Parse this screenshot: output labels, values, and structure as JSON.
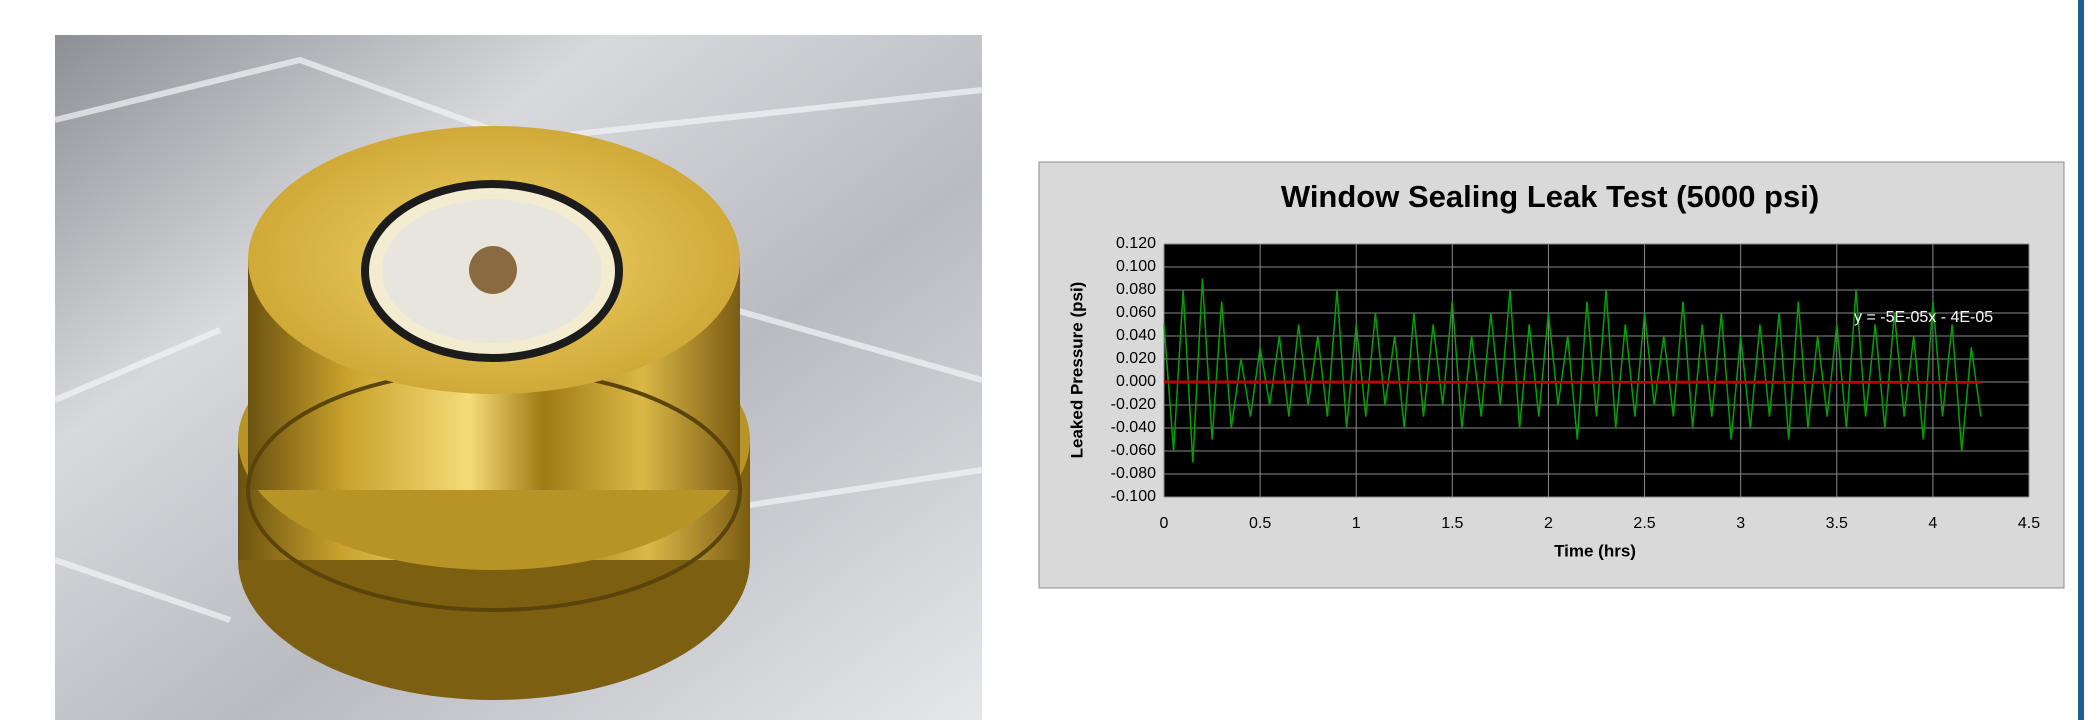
{
  "chart_data": {
    "type": "line",
    "title": "Window Sealing Leak Test (5000 psi)",
    "x_label": "Time (hrs)",
    "y_label": "Leaked Pressure (psi)",
    "x": [
      0,
      0.05,
      0.1,
      0.15,
      0.2,
      0.25,
      0.3,
      0.35,
      0.4,
      0.45,
      0.5,
      0.55,
      0.6,
      0.65,
      0.7,
      0.75,
      0.8,
      0.85,
      0.9,
      0.95,
      1,
      1.05,
      1.1,
      1.15,
      1.2,
      1.25,
      1.3,
      1.35,
      1.4,
      1.45,
      1.5,
      1.55,
      1.6,
      1.65,
      1.7,
      1.75,
      1.8,
      1.85,
      1.9,
      1.95,
      2,
      2.05,
      2.1,
      2.15,
      2.2,
      2.25,
      2.3,
      2.35,
      2.4,
      2.45,
      2.5,
      2.55,
      2.6,
      2.65,
      2.7,
      2.75,
      2.8,
      2.85,
      2.9,
      2.95,
      3,
      3.05,
      3.1,
      3.15,
      3.2,
      3.25,
      3.3,
      3.35,
      3.4,
      3.45,
      3.5,
      3.55,
      3.6,
      3.65,
      3.7,
      3.75,
      3.8,
      3.85,
      3.9,
      3.95,
      4,
      4.05,
      4.1,
      4.15,
      4.2,
      4.25
    ],
    "series": [
      {
        "color": "#00a000",
        "values": [
          0.05,
          -0.06,
          0.08,
          -0.07,
          0.09,
          -0.05,
          0.07,
          -0.04,
          0.02,
          -0.03,
          0.03,
          -0.02,
          0.04,
          -0.03,
          0.05,
          -0.02,
          0.04,
          -0.03,
          0.08,
          -0.04,
          0.05,
          -0.03,
          0.06,
          -0.02,
          0.04,
          -0.04,
          0.06,
          -0.03,
          0.05,
          -0.02,
          0.07,
          -0.04,
          0.04,
          -0.03,
          0.06,
          -0.02,
          0.08,
          -0.04,
          0.05,
          -0.03,
          0.06,
          -0.02,
          0.04,
          -0.05,
          0.07,
          -0.03,
          0.08,
          -0.04,
          0.05,
          -0.03,
          0.06,
          -0.02,
          0.04,
          -0.03,
          0.07,
          -0.04,
          0.05,
          -0.03,
          0.06,
          -0.05,
          0.04,
          -0.04,
          0.05,
          -0.03,
          0.06,
          -0.05,
          0.07,
          -0.04,
          0.04,
          -0.03,
          0.05,
          -0.04,
          0.08,
          -0.03,
          0.05,
          -0.04,
          0.06,
          -0.03,
          0.04,
          -0.05,
          0.07,
          -0.03,
          0.05,
          -0.06,
          0.03,
          -0.03
        ]
      }
    ],
    "trendline": {
      "color": "#c00000",
      "x": [
        0,
        4.25
      ],
      "values": [
        -4e-05,
        -0.0002525
      ],
      "label": "y = -5E-05x - 4E-05"
    },
    "xlim": [
      0,
      4.5
    ],
    "xticks": [
      0,
      0.5,
      1,
      1.5,
      2,
      2.5,
      3,
      3.5,
      4,
      4.5
    ],
    "ylim": [
      -0.1,
      0.12
    ],
    "yticks": [
      {
        "value": -0.1,
        "label": "-0.100"
      },
      {
        "value": -0.08,
        "label": "-0.080"
      },
      {
        "value": -0.06,
        "label": "-0.060"
      },
      {
        "value": -0.04,
        "label": "-0.040"
      },
      {
        "value": -0.02,
        "label": "-0.020"
      },
      {
        "value": 0,
        "label": "0.000"
      },
      {
        "value": 0.02,
        "label": "0.020"
      },
      {
        "value": 0.04,
        "label": "0.040"
      },
      {
        "value": 0.06,
        "label": "0.060"
      },
      {
        "value": 0.08,
        "label": "0.080"
      },
      {
        "value": 0.1,
        "label": "0.100"
      },
      {
        "value": 0.12,
        "label": "0.120"
      }
    ],
    "grid": true
  }
}
